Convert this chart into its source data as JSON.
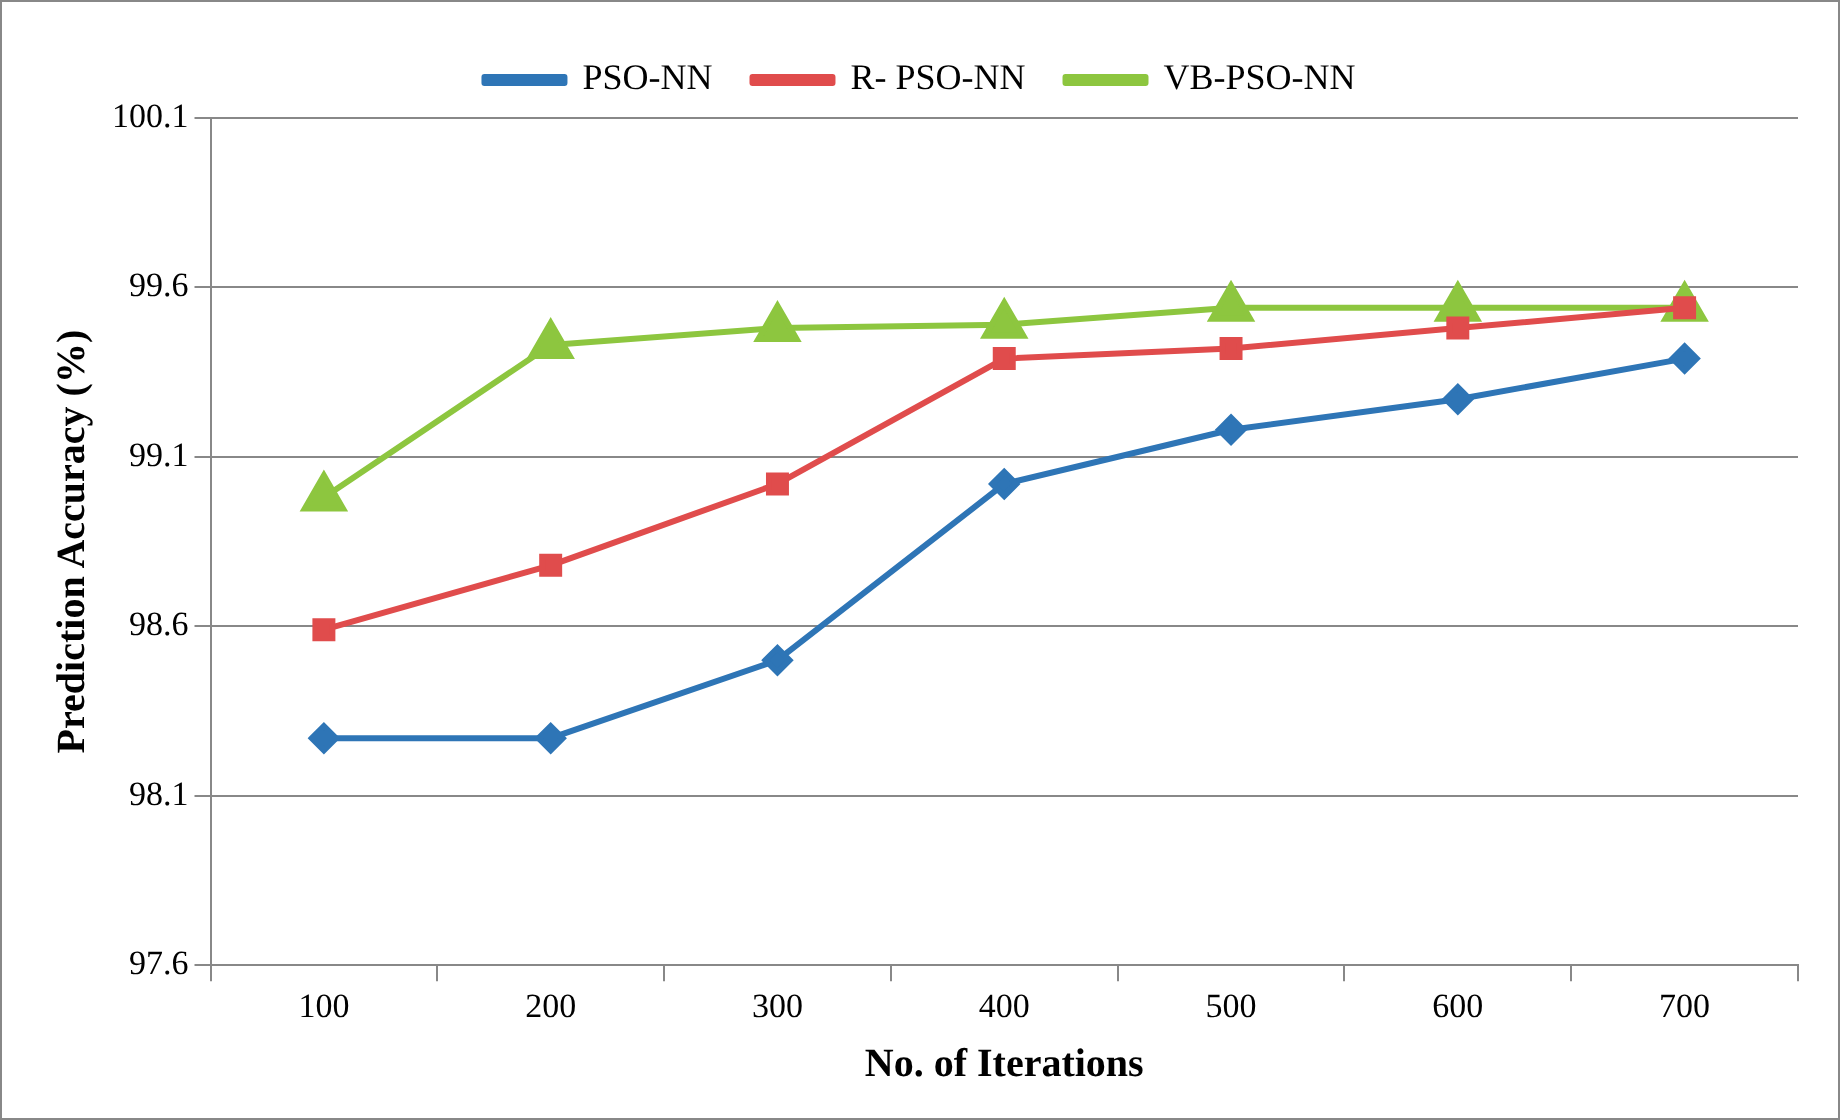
{
  "chart_data": {
    "type": "line",
    "xlabel": "No. of Iterations",
    "ylabel": "Prediction Accuracy (%)",
    "categories": [
      "100",
      "200",
      "300",
      "400",
      "500",
      "600",
      "700"
    ],
    "series": [
      {
        "name": "PSO-NN",
        "color": "#2e75b6",
        "marker": "diamond",
        "values": [
          98.27,
          98.27,
          98.5,
          99.02,
          99.18,
          99.27,
          99.39
        ]
      },
      {
        "name": "R- PSO-NN",
        "color": "#e04c4c",
        "marker": "square",
        "values": [
          98.59,
          98.78,
          99.02,
          99.39,
          99.42,
          99.48,
          99.54
        ]
      },
      {
        "name": "VB-PSO-NN",
        "color": "#8dc63f",
        "marker": "triangle",
        "values": [
          98.98,
          99.43,
          99.48,
          99.49,
          99.54,
          99.54,
          99.54
        ]
      }
    ],
    "ylim": [
      97.6,
      100.1
    ],
    "yticks": [
      97.6,
      98.1,
      98.6,
      99.1,
      99.6,
      100.1
    ],
    "grid": "y",
    "legend": "top"
  }
}
